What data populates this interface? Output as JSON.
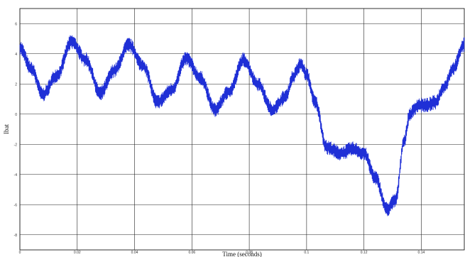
{
  "chart_data": {
    "type": "line",
    "title": "",
    "xlabel": "Time (seconds)",
    "ylabel": "Ibat",
    "xlim": [
      0,
      0.155
    ],
    "ylim": [
      -9,
      7
    ],
    "grid": true,
    "x_ticks": [
      0,
      0.02,
      0.04,
      0.06,
      0.08,
      0.1,
      0.12,
      0.14
    ],
    "x_tick_labels": [
      "0",
      "0.02",
      "0.04",
      "0.06",
      "0.08",
      "0.1",
      "0.12",
      "0.14"
    ],
    "y_ticks": [
      6,
      4,
      2,
      0,
      -2,
      -4,
      -6,
      -8
    ],
    "y_tick_labels": [
      "6",
      "4",
      "2",
      "0",
      "-2",
      "-4",
      "-6",
      "-8"
    ],
    "line_color": "#1f2fd6",
    "series": [
      {
        "values_x": [
          0,
          0.004,
          0.008,
          0.013,
          0.018,
          0.023,
          0.028,
          0.033,
          0.038,
          0.043,
          0.048,
          0.053,
          0.058,
          0.063,
          0.068,
          0.073,
          0.078,
          0.083,
          0.088,
          0.093,
          0.095,
          0.098,
          0.1,
          0.103,
          0.107,
          0.112,
          0.116,
          0.12,
          0.124,
          0.128,
          0.131,
          0.134,
          0.136,
          0.139,
          0.142,
          0.145,
          0.148,
          0.151,
          0.155
        ],
        "values_y": [
          4.4,
          3.0,
          1.3,
          2.6,
          4.8,
          3.6,
          1.4,
          2.9,
          4.6,
          3.2,
          0.8,
          1.6,
          3.7,
          2.4,
          0.3,
          1.5,
          3.6,
          2.0,
          0.3,
          1.2,
          2.4,
          3.3,
          2.6,
          0.8,
          -2.2,
          -2.6,
          -2.3,
          -2.6,
          -4.2,
          -6.3,
          -5.7,
          -1.8,
          0.0,
          0.6,
          0.6,
          0.8,
          1.8,
          3.0,
          4.6
        ]
      }
    ]
  }
}
